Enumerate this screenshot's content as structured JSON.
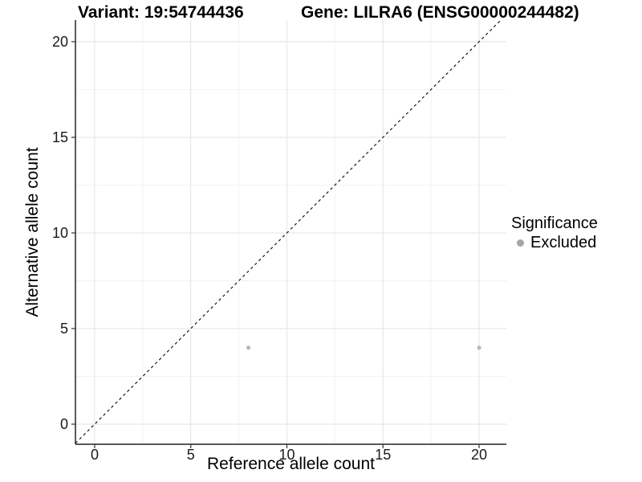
{
  "chart_data": {
    "type": "scatter",
    "title_left": "Variant: 19:54744436",
    "title_right": "Gene: LILRA6 (ENSG00000244482)",
    "xlabel": "Reference allele count",
    "ylabel": "Alternative allele count",
    "xlim": [
      -1.0,
      21.42
    ],
    "ylim": [
      -1.05,
      21.13
    ],
    "xticks": [
      0,
      5,
      10,
      15,
      20
    ],
    "yticks": [
      0,
      5,
      10,
      15,
      20
    ],
    "xticks_minor": [
      2.5,
      7.5,
      12.5,
      17.5
    ],
    "yticks_minor": [
      2.5,
      7.5,
      12.5,
      17.5
    ],
    "grid": "major+minor",
    "reference_line": {
      "type": "identity",
      "slope": 1,
      "intercept": 0,
      "style": "dashed",
      "color": "#1a1a1a"
    },
    "series": [
      {
        "name": "Excluded",
        "color": "#b9b9b9",
        "points": [
          [
            8,
            4
          ],
          [
            20,
            4
          ]
        ]
      }
    ],
    "legend": {
      "title": "Significance",
      "position": "right",
      "entries": [
        {
          "label": "Excluded",
          "color": "#a6a6a6",
          "marker": "dot-icon"
        }
      ]
    },
    "colors": {
      "background": "#ffffff",
      "axis_line": "#222222",
      "grid_major": "#e7e7e7",
      "grid_minor": "#f2f2f2",
      "tick_label": "#1a1a1a"
    }
  }
}
